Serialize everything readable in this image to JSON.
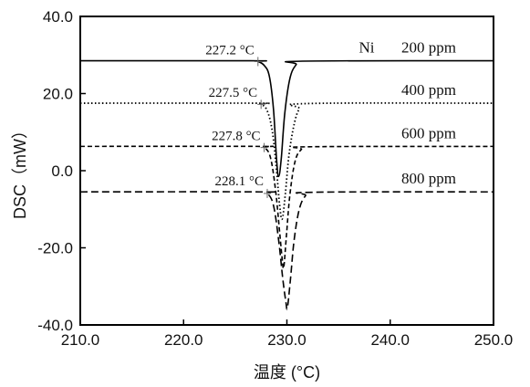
{
  "chart_data": {
    "type": "line",
    "xlabel": "温度 (°C)",
    "ylabel": "DSC（mW）",
    "xlim": [
      210,
      250
    ],
    "ylim": [
      -40,
      40
    ],
    "x_ticks": [
      "210.0",
      "220.0",
      "230.0",
      "240.0",
      "250.0"
    ],
    "y_ticks": [
      "40.0",
      "20.0",
      "0.0",
      "-20.0",
      "-40.0"
    ],
    "legend_prefix": "Ni",
    "grid": false,
    "series": [
      {
        "name": "200 ppm",
        "onset_label": "227.2 °C",
        "line_style": "solid",
        "onset": 227.2,
        "points": [
          [
            210,
            28.5
          ],
          [
            226.5,
            28.5
          ],
          [
            227.2,
            28.3
          ],
          [
            227.8,
            27.3
          ],
          [
            228.3,
            24.5
          ],
          [
            228.7,
            16
          ],
          [
            229.0,
            3
          ],
          [
            229.2,
            -1.5
          ],
          [
            229.45,
            3
          ],
          [
            229.8,
            15
          ],
          [
            230.3,
            24
          ],
          [
            230.9,
            27.5
          ],
          [
            231.5,
            28.4
          ],
          [
            250,
            28.5
          ]
        ]
      },
      {
        "name": "400 ppm",
        "onset_label": "227.5 °C",
        "line_style": "dotted",
        "onset": 227.5,
        "points": [
          [
            210,
            17.5
          ],
          [
            226.8,
            17.5
          ],
          [
            227.5,
            17.2
          ],
          [
            228.1,
            15.5
          ],
          [
            228.6,
            10
          ],
          [
            229.0,
            0
          ],
          [
            229.3,
            -9
          ],
          [
            229.55,
            -12.5
          ],
          [
            229.85,
            -6
          ],
          [
            230.2,
            4
          ],
          [
            230.7,
            12
          ],
          [
            231.2,
            16
          ],
          [
            231.9,
            17.4
          ],
          [
            250,
            17.5
          ]
        ]
      },
      {
        "name": "600 ppm",
        "onset_label": "227.8 °C",
        "line_style": "dashed",
        "onset": 227.8,
        "points": [
          [
            210,
            6.3
          ],
          [
            227.1,
            6.3
          ],
          [
            227.8,
            6.0
          ],
          [
            228.4,
            3.5
          ],
          [
            228.9,
            -5
          ],
          [
            229.3,
            -16
          ],
          [
            229.55,
            -23
          ],
          [
            229.7,
            -25
          ],
          [
            229.95,
            -17
          ],
          [
            230.3,
            -6
          ],
          [
            230.8,
            2.5
          ],
          [
            231.4,
            5.5
          ],
          [
            232.1,
            6.2
          ],
          [
            250,
            6.3
          ]
        ]
      },
      {
        "name": "800 ppm",
        "onset_label": "228.1 °C",
        "line_style": "long-dashed",
        "onset": 228.1,
        "points": [
          [
            210,
            -5.5
          ],
          [
            227.4,
            -5.5
          ],
          [
            228.1,
            -5.9
          ],
          [
            228.7,
            -9
          ],
          [
            229.2,
            -18
          ],
          [
            229.6,
            -28
          ],
          [
            229.9,
            -34
          ],
          [
            230.05,
            -35.5
          ],
          [
            230.35,
            -28
          ],
          [
            230.7,
            -18
          ],
          [
            231.2,
            -10
          ],
          [
            231.8,
            -6.5
          ],
          [
            232.5,
            -5.6
          ],
          [
            250,
            -5.5
          ]
        ]
      }
    ]
  }
}
